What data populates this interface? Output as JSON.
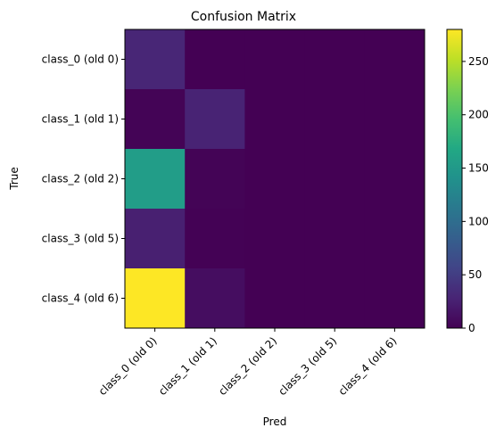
{
  "chart_data": {
    "type": "heatmap",
    "title": "Confusion Matrix",
    "xlabel": "Pred",
    "ylabel": "True",
    "x_categories": [
      "class_0 (old 0)",
      "class_1 (old 1)",
      "class_2 (old 2)",
      "class_3 (old 5)",
      "class_4 (old 6)"
    ],
    "y_categories": [
      "class_0 (old 0)",
      "class_1 (old 1)",
      "class_2 (old 2)",
      "class_3 (old 5)",
      "class_4 (old 6)"
    ],
    "matrix": [
      [
        30,
        0,
        0,
        0,
        0
      ],
      [
        2,
        27,
        0,
        0,
        0
      ],
      [
        155,
        2,
        0,
        0,
        0
      ],
      [
        25,
        1,
        0,
        0,
        0
      ],
      [
        280,
        10,
        0,
        0,
        0
      ]
    ],
    "colorbar": {
      "colormap": "viridis",
      "range": [
        0,
        280
      ],
      "ticks": [
        "0",
        "50",
        "100",
        "150",
        "200",
        "250"
      ]
    },
    "grid": false
  }
}
